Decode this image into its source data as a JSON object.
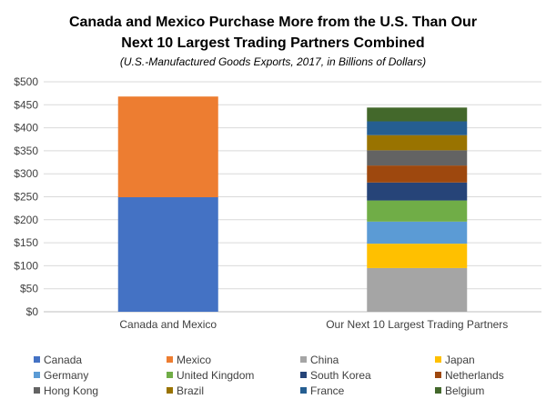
{
  "chart_data": {
    "type": "bar",
    "stacked": true,
    "title_lines": [
      "Canada and Mexico Purchase More from the U.S. Than Our",
      "Next 10 Largest Trading Partners Combined"
    ],
    "subtitle": "(U.S.-Manufactured Goods Exports, 2017, in Billions of Dollars)",
    "categories": [
      "Canada and Mexico",
      "Our Next 10 Largest Trading Partners"
    ],
    "ylim": [
      0,
      500
    ],
    "ytick_step": 50,
    "ytick_prefix": "$",
    "grid": true,
    "legend_position": "bottom",
    "series": [
      {
        "name": "Canada",
        "color": "#4472C4",
        "values": [
          249,
          0
        ]
      },
      {
        "name": "Mexico",
        "color": "#ED7D31",
        "values": [
          219,
          0
        ]
      },
      {
        "name": "China",
        "color": "#A5A5A5",
        "values": [
          0,
          95
        ]
      },
      {
        "name": "Japan",
        "color": "#FFC000",
        "values": [
          0,
          53
        ]
      },
      {
        "name": "Germany",
        "color": "#5B9BD5",
        "values": [
          0,
          48
        ]
      },
      {
        "name": "United Kingdom",
        "color": "#70AD47",
        "values": [
          0,
          46
        ]
      },
      {
        "name": "South Korea",
        "color": "#264478",
        "values": [
          0,
          39
        ]
      },
      {
        "name": "Netherlands",
        "color": "#9E480E",
        "values": [
          0,
          37
        ]
      },
      {
        "name": "Hong Kong",
        "color": "#636363",
        "values": [
          0,
          33
        ]
      },
      {
        "name": "Brazil",
        "color": "#997300",
        "values": [
          0,
          33
        ]
      },
      {
        "name": "France",
        "color": "#255E91",
        "values": [
          0,
          30
        ]
      },
      {
        "name": "Belgium",
        "color": "#43682B",
        "values": [
          0,
          30
        ]
      }
    ]
  }
}
